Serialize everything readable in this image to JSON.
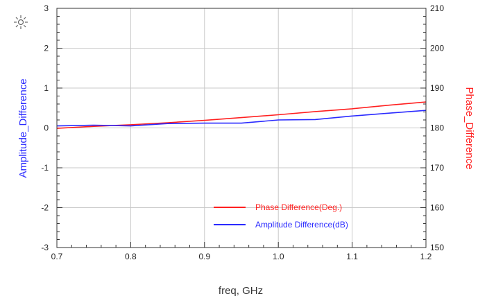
{
  "marker_icon": "sun-marker-icon",
  "chart_data": {
    "type": "line",
    "xlabel": "freq, GHz",
    "ylabel_left": "Amplitude_Difference",
    "ylabel_right": "Phase_Difference",
    "xlim": [
      0.7,
      1.2
    ],
    "ylim_left": [
      -3,
      3
    ],
    "ylim_right": [
      150,
      210
    ],
    "x_ticks": [
      "0.7",
      "0.8",
      "0.9",
      "1.0",
      "1.1",
      "1.2"
    ],
    "y_left_ticks": [
      "-3",
      "-2",
      "-1",
      "0",
      "1",
      "2",
      "3"
    ],
    "y_right_ticks": [
      "150",
      "160",
      "170",
      "180",
      "190",
      "200",
      "210"
    ],
    "grid": true,
    "legend_position": "bottom-right",
    "colors": {
      "left_axis": "#2a2aff",
      "right_axis": "#ff2020"
    },
    "series": [
      {
        "name": "Phase Difference(Deg.)",
        "axis": "right",
        "color": "#ff2020",
        "x": [
          0.7,
          0.75,
          0.8,
          0.85,
          0.9,
          0.95,
          1.0,
          1.05,
          1.1,
          1.15,
          1.2
        ],
        "y": [
          179.9,
          180.4,
          180.8,
          181.3,
          181.9,
          182.6,
          183.3,
          184.1,
          184.8,
          185.7,
          186.5
        ]
      },
      {
        "name": "Amplitude Difference(dB)",
        "axis": "left",
        "color": "#2a2aff",
        "x": [
          0.7,
          0.75,
          0.8,
          0.85,
          0.9,
          0.95,
          1.0,
          1.05,
          1.1,
          1.15,
          1.2
        ],
        "y": [
          0.05,
          0.07,
          0.05,
          0.11,
          0.12,
          0.12,
          0.2,
          0.21,
          0.3,
          0.37,
          0.44
        ]
      }
    ]
  }
}
